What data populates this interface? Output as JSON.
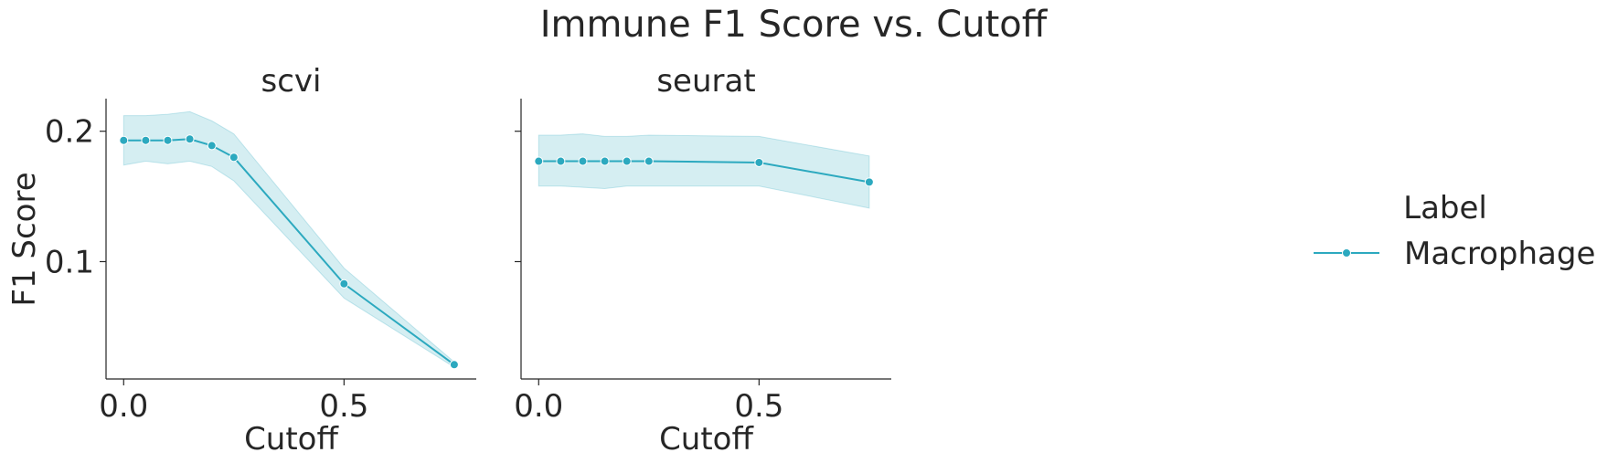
{
  "chart_data": {
    "type": "line",
    "title": "Immune F1 Score vs. Cutoff",
    "ylabel": "F1 Score",
    "xlabel": "Cutoff",
    "legend": {
      "title": "Label",
      "placement": "right",
      "entries": [
        "Macrophage"
      ]
    },
    "colors": {
      "series": "#2ca9bf",
      "band": "#2ca9bf"
    },
    "xlim": [
      -0.04,
      0.8
    ],
    "ylim": [
      0.01,
      0.225
    ],
    "xticks": [
      0.0,
      0.5
    ],
    "xtick_labels": [
      "0.0",
      "0.5"
    ],
    "yticks": [
      0.1,
      0.2
    ],
    "ytick_labels": [
      "0.1",
      "0.2"
    ],
    "grid": false,
    "panels": [
      {
        "title": "scvi",
        "series": [
          {
            "name": "Macrophage",
            "x": [
              0.0,
              0.05,
              0.1,
              0.15,
              0.2,
              0.25,
              0.5,
              0.75
            ],
            "y": [
              0.193,
              0.193,
              0.193,
              0.194,
              0.189,
              0.18,
              0.083,
              0.021
            ],
            "y_lower": [
              0.174,
              0.177,
              0.175,
              0.177,
              0.173,
              0.162,
              0.072,
              0.019
            ],
            "y_upper": [
              0.212,
              0.212,
              0.213,
              0.215,
              0.208,
              0.198,
              0.095,
              0.023
            ]
          }
        ]
      },
      {
        "title": "seurat",
        "series": [
          {
            "name": "Macrophage",
            "x": [
              0.0,
              0.05,
              0.1,
              0.15,
              0.2,
              0.25,
              0.5,
              0.75
            ],
            "y": [
              0.177,
              0.177,
              0.177,
              0.177,
              0.177,
              0.177,
              0.176,
              0.161
            ],
            "y_lower": [
              0.158,
              0.158,
              0.157,
              0.156,
              0.158,
              0.158,
              0.158,
              0.141
            ],
            "y_upper": [
              0.197,
              0.197,
              0.198,
              0.196,
              0.196,
              0.197,
              0.196,
              0.181
            ]
          }
        ]
      }
    ]
  }
}
